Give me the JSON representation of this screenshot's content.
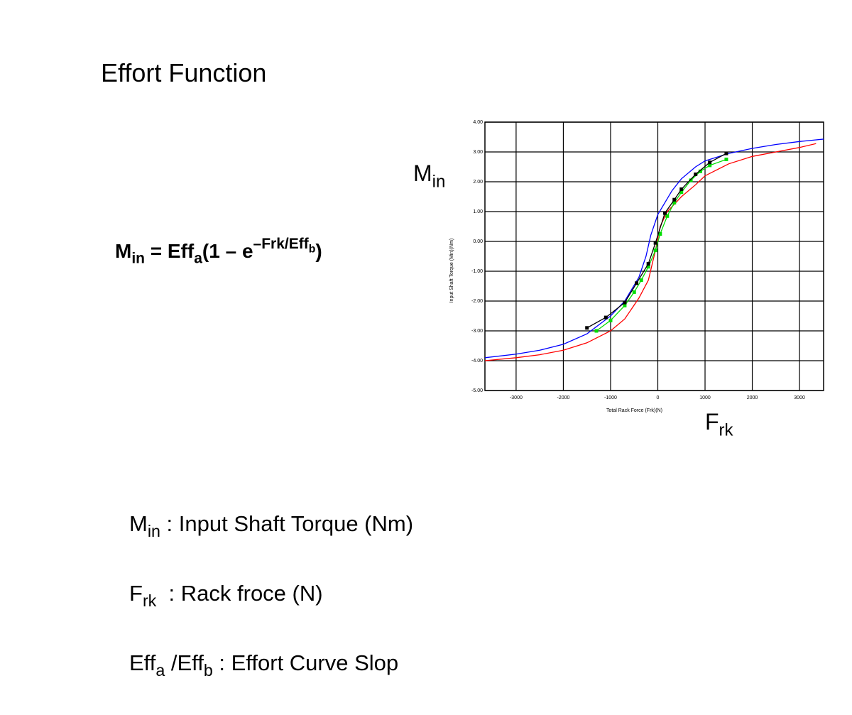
{
  "title": "Effort Function",
  "formula": [
    "M",
    "in",
    " = Eff",
    "a",
    "(1 – e",
    "–Frk/Eff",
    "b",
    ")"
  ],
  "axis_overlay": {
    "y": [
      "M",
      "in"
    ],
    "x": [
      "F",
      "rk"
    ]
  },
  "definitions": [
    [
      "M",
      "in",
      " : Input Shaft Torque (Nm)"
    ],
    [
      "F",
      "rk",
      "  : Rack froce (N)"
    ],
    [
      "Eff",
      "a",
      " /Eff",
      "b",
      " : Effort Curve Slop"
    ]
  ],
  "chart_data": {
    "type": "line",
    "xlabel": "Total Rack Force (Frk)(N)",
    "ylabel": "Input Shaft Torque (Min)(Nm)",
    "xlim": [
      -3660,
      3510
    ],
    "ylim": [
      -5,
      4
    ],
    "xticks": [
      -3000,
      -2000,
      -1000,
      0,
      1000,
      2000,
      3000
    ],
    "yticks": [
      {
        "value": 4,
        "label": "4.00"
      },
      {
        "value": 3,
        "label": "3.00"
      },
      {
        "value": 2,
        "label": "2.00"
      },
      {
        "value": 1,
        "label": "1.00"
      },
      {
        "value": 0,
        "label": "0.00"
      },
      {
        "value": -1,
        "label": "-1.00"
      },
      {
        "value": -2,
        "label": "-2.00"
      },
      {
        "value": -3,
        "label": "-3.00"
      },
      {
        "value": -4,
        "label": "-4.00"
      },
      {
        "value": -5,
        "label": "-5.00"
      }
    ],
    "grid": true,
    "series": [
      {
        "color": "#0000ff",
        "markers": false,
        "x": [
          -3660,
          -3000,
          -2500,
          -2000,
          -1500,
          -1000,
          -700,
          -400,
          -250,
          -150,
          0,
          150,
          300,
          500,
          800,
          1000,
          1500,
          2000,
          2500,
          3000,
          3510
        ],
        "values": [
          -3.9,
          -3.78,
          -3.65,
          -3.45,
          -3.1,
          -2.5,
          -2.0,
          -1.2,
          -0.5,
          0.2,
          0.9,
          1.3,
          1.7,
          2.1,
          2.5,
          2.7,
          2.95,
          3.12,
          3.25,
          3.35,
          3.43
        ]
      },
      {
        "color": "#ff0000",
        "markers": false,
        "x": [
          -3660,
          -3000,
          -2500,
          -2000,
          -1500,
          -1000,
          -700,
          -400,
          -200,
          -50,
          50,
          200,
          500,
          800,
          1000,
          1500,
          2000,
          2500,
          3000,
          3350
        ],
        "values": [
          -4.0,
          -3.9,
          -3.8,
          -3.65,
          -3.4,
          -3.0,
          -2.6,
          -1.9,
          -1.3,
          -0.3,
          0.5,
          1.0,
          1.5,
          1.9,
          2.2,
          2.6,
          2.85,
          3.0,
          3.15,
          3.28
        ]
      },
      {
        "color": "#00dd00",
        "markers": true,
        "x": [
          -1300,
          -1000,
          -700,
          -500,
          -350,
          -200,
          -50,
          50,
          200,
          350,
          500,
          700,
          900,
          1100,
          1450
        ],
        "values": [
          -3.0,
          -2.65,
          -2.15,
          -1.7,
          -1.3,
          -0.85,
          -0.3,
          0.25,
          0.85,
          1.3,
          1.65,
          2.05,
          2.35,
          2.55,
          2.75
        ]
      },
      {
        "color": "#000000",
        "markers": true,
        "x": [
          -1500,
          -1100,
          -700,
          -450,
          -200,
          -50,
          150,
          350,
          500,
          800,
          1100,
          1450
        ],
        "values": [
          -2.9,
          -2.55,
          -2.05,
          -1.4,
          -0.75,
          -0.05,
          0.95,
          1.4,
          1.75,
          2.25,
          2.65,
          2.95
        ]
      }
    ]
  }
}
